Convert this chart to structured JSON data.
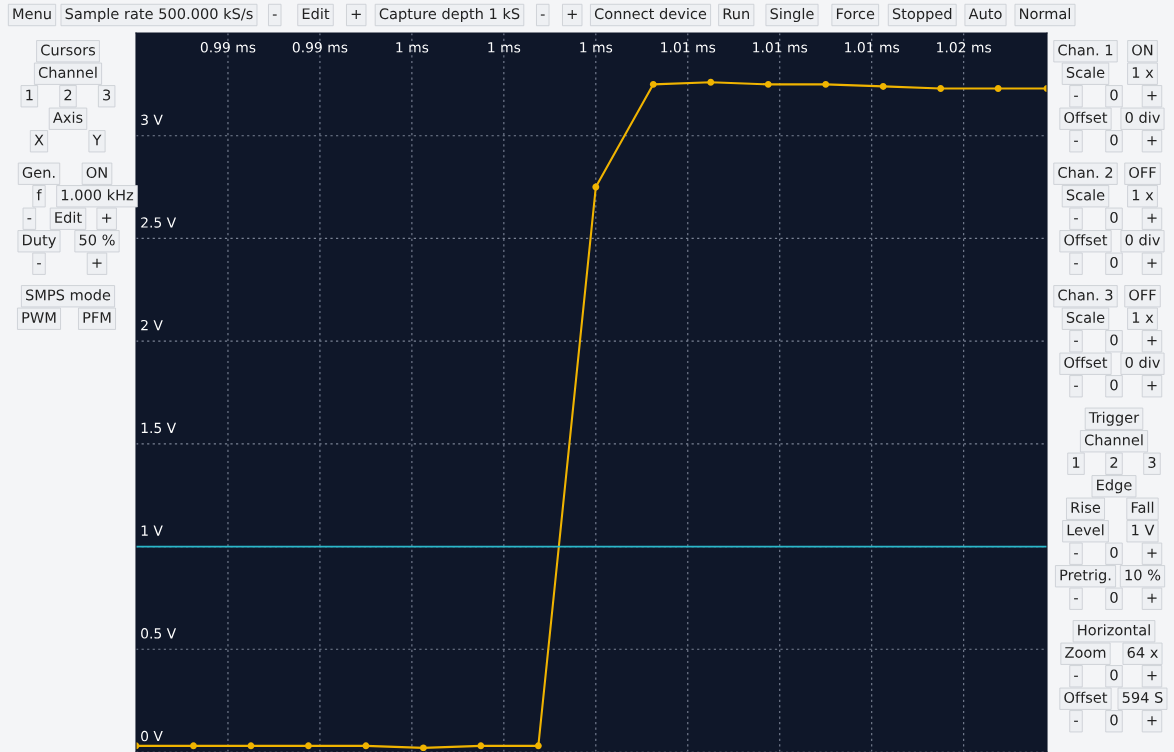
{
  "chart_data": {
    "type": "line",
    "x": [
      0.9874,
      0.9894,
      0.9914,
      0.9934,
      0.9954,
      0.9974,
      0.9994,
      1.0014,
      1.0034,
      1.0054,
      1.0074,
      1.0094,
      1.0114,
      1.0134,
      1.0154,
      1.0174,
      1.0191
    ],
    "series": [
      {
        "color": "#f0b400",
        "values": [
          0.03,
          0.03,
          0.03,
          0.03,
          0.03,
          0.02,
          0.03,
          0.03,
          2.75,
          3.25,
          3.26,
          3.25,
          3.25,
          3.24,
          3.23,
          3.23,
          3.23
        ]
      }
    ],
    "xlim": [
      0.9874,
      1.0191
    ],
    "xticks": [
      {
        "value": 0.9906,
        "label": "0.99 ms"
      },
      {
        "value": 0.9938,
        "label": "0.99 ms"
      },
      {
        "value": 0.997,
        "label": "1 ms"
      },
      {
        "value": 1.0002,
        "label": "1 ms"
      },
      {
        "value": 1.0034,
        "label": "1 ms"
      },
      {
        "value": 1.0066,
        "label": "1.01 ms"
      },
      {
        "value": 1.0098,
        "label": "1.01 ms"
      },
      {
        "value": 1.013,
        "label": "1.01 ms"
      },
      {
        "value": 1.0162,
        "label": "1.02 ms"
      }
    ],
    "ylim": [
      0,
      3.5
    ],
    "yticks": [
      {
        "value": 0,
        "label": "0 V"
      },
      {
        "value": 0.5,
        "label": "0.5 V"
      },
      {
        "value": 1,
        "label": "1 V"
      },
      {
        "value": 1.5,
        "label": "1.5 V"
      },
      {
        "value": 2,
        "label": "2 V"
      },
      {
        "value": 2.5,
        "label": "2.5 V"
      },
      {
        "value": 3,
        "label": "3 V"
      }
    ],
    "grid": true,
    "marker": "circle",
    "line_style": "solid",
    "ref_lines": [
      {
        "axis": "y",
        "value": 1,
        "color": "#2ab7c9"
      }
    ],
    "annotations": [
      "Menu",
      "Sample rate 500.000 kS/s",
      "-",
      "Edit",
      "+",
      "Capture depth 1 kS",
      "-",
      "+",
      "Connect device",
      "Run",
      "Single",
      "Force",
      "Stopped",
      "Auto",
      "Normal",
      "Cursors",
      "Channel",
      "1",
      "2",
      "3",
      "Axis",
      "X",
      "Y",
      "Gen.",
      "ON",
      "f",
      "1.000 kHz",
      "-",
      "Edit",
      "+",
      "Duty",
      "50 %",
      "-",
      "+",
      "SMPS mode",
      "PWM",
      "PFM",
      "Chan. 1",
      "ON",
      "Scale",
      "1 x",
      "-",
      "0",
      "+",
      "Offset",
      "0 div",
      "-",
      "0",
      "+",
      "Chan. 2",
      "OFF",
      "Scale",
      "1 x",
      "-",
      "0",
      "+",
      "Offset",
      "0 div",
      "-",
      "0",
      "+",
      "Chan. 3",
      "OFF",
      "Scale",
      "1 x",
      "-",
      "0",
      "+",
      "Offset",
      "0 div",
      "-",
      "0",
      "+",
      "Trigger",
      "Channel",
      "1",
      "2",
      "3",
      "Edge",
      "Rise",
      "Fall",
      "Level",
      "1 V",
      "-",
      "0",
      "+",
      "Pretrig.",
      "10 %",
      "-",
      "0",
      "+",
      "Horizontal",
      "Zoom",
      "64 x",
      "-",
      "0",
      "+",
      "Offset",
      "594 S",
      "-",
      "0",
      "+"
    ]
  }
}
